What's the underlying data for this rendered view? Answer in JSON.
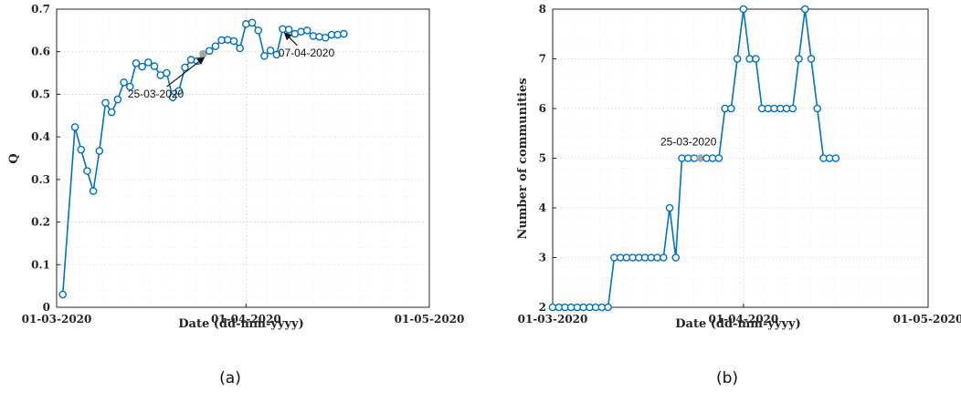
{
  "colors": {
    "series": "#0072BD",
    "highlight": "#a6a6a6",
    "marker_fill": "#ffffff"
  },
  "chart_data": [
    {
      "type": "line",
      "caption": "(a)",
      "title": "",
      "xlabel": "Date (dd-mm-yyyy)",
      "ylabel": "Q",
      "xlim": [
        "01-03-2020",
        "01-05-2020"
      ],
      "ylim": [
        0,
        0.7
      ],
      "grid": true,
      "x_ticks": [
        "01-03-2020",
        "01-04-2020",
        "01-05-2020"
      ],
      "y_ticks": [
        "0",
        "0.1",
        "0.2",
        "0.3",
        "0.4",
        "0.5",
        "0.6",
        "0.7"
      ],
      "y_tick_values": [
        0,
        0.1,
        0.2,
        0.3,
        0.4,
        0.5,
        0.6,
        0.7
      ],
      "x": [
        "02-03-2020",
        "04-03-2020",
        "05-03-2020",
        "06-03-2020",
        "07-03-2020",
        "08-03-2020",
        "09-03-2020",
        "10-03-2020",
        "11-03-2020",
        "12-03-2020",
        "13-03-2020",
        "14-03-2020",
        "15-03-2020",
        "16-03-2020",
        "17-03-2020",
        "18-03-2020",
        "19-03-2020",
        "20-03-2020",
        "21-03-2020",
        "22-03-2020",
        "23-03-2020",
        "24-03-2020",
        "25-03-2020",
        "26-03-2020",
        "27-03-2020",
        "28-03-2020",
        "29-03-2020",
        "30-03-2020",
        "31-03-2020",
        "01-04-2020",
        "02-04-2020",
        "03-04-2020",
        "04-04-2020",
        "05-04-2020",
        "06-04-2020",
        "07-04-2020",
        "08-04-2020",
        "09-04-2020",
        "10-04-2020",
        "11-04-2020",
        "12-04-2020",
        "13-04-2020",
        "14-04-2020",
        "15-04-2020",
        "16-04-2020",
        "17-04-2020"
      ],
      "values": [
        0.03,
        0.423,
        0.37,
        0.32,
        0.273,
        0.367,
        0.48,
        0.458,
        0.488,
        0.528,
        0.518,
        0.573,
        0.565,
        0.575,
        0.566,
        0.545,
        0.55,
        0.493,
        0.508,
        0.563,
        0.581,
        0.578,
        0.595,
        0.602,
        0.613,
        0.627,
        0.628,
        0.625,
        0.608,
        0.665,
        0.668,
        0.65,
        0.59,
        0.603,
        0.593,
        0.653,
        0.652,
        0.642,
        0.647,
        0.65,
        0.637,
        0.635,
        0.633,
        0.64,
        0.64,
        0.642
      ],
      "highlight": "25-03-2020",
      "annotations": [
        {
          "text": "25-03-2020",
          "x": "25-03-2020",
          "y": 0.595
        },
        {
          "text": "07-04-2020",
          "x": "07-04-2020",
          "y": 0.653
        }
      ]
    },
    {
      "type": "line",
      "caption": "(b)",
      "title": "",
      "xlabel": "Date (dd-mm-yyyy)",
      "ylabel": "Number of communities",
      "xlim": [
        "01-03-2020",
        "01-05-2020"
      ],
      "ylim": [
        2,
        8
      ],
      "grid": true,
      "x_ticks": [
        "01-03-2020",
        "01-04-2020",
        "01-05-2020"
      ],
      "y_ticks": [
        "2",
        "3",
        "4",
        "5",
        "6",
        "7",
        "8"
      ],
      "y_tick_values": [
        2,
        3,
        4,
        5,
        6,
        7,
        8
      ],
      "x": [
        "01-03-2020",
        "02-03-2020",
        "03-03-2020",
        "04-03-2020",
        "05-03-2020",
        "06-03-2020",
        "07-03-2020",
        "08-03-2020",
        "09-03-2020",
        "10-03-2020",
        "11-03-2020",
        "12-03-2020",
        "13-03-2020",
        "14-03-2020",
        "15-03-2020",
        "16-03-2020",
        "17-03-2020",
        "18-03-2020",
        "19-03-2020",
        "20-03-2020",
        "21-03-2020",
        "22-03-2020",
        "23-03-2020",
        "24-03-2020",
        "25-03-2020",
        "26-03-2020",
        "27-03-2020",
        "28-03-2020",
        "29-03-2020",
        "30-03-2020",
        "31-03-2020",
        "01-04-2020",
        "02-04-2020",
        "03-04-2020",
        "04-04-2020",
        "05-04-2020",
        "06-04-2020",
        "07-04-2020",
        "08-04-2020",
        "09-04-2020",
        "10-04-2020",
        "11-04-2020",
        "12-04-2020",
        "13-04-2020",
        "14-04-2020",
        "15-04-2020",
        "16-04-2020"
      ],
      "values": [
        2,
        2,
        2,
        2,
        2,
        2,
        2,
        2,
        2,
        2,
        3,
        3,
        3,
        3,
        3,
        3,
        3,
        3,
        3,
        4,
        3,
        5,
        5,
        5,
        5,
        5,
        5,
        5,
        6,
        6,
        7,
        8,
        7,
        7,
        6,
        6,
        6,
        6,
        6,
        6,
        7,
        8,
        7,
        6,
        5,
        5,
        5
      ],
      "highlight": "25-03-2020",
      "annotations": [
        {
          "text": "25-03-2020",
          "x": "25-03-2020",
          "y": 5
        }
      ]
    }
  ]
}
